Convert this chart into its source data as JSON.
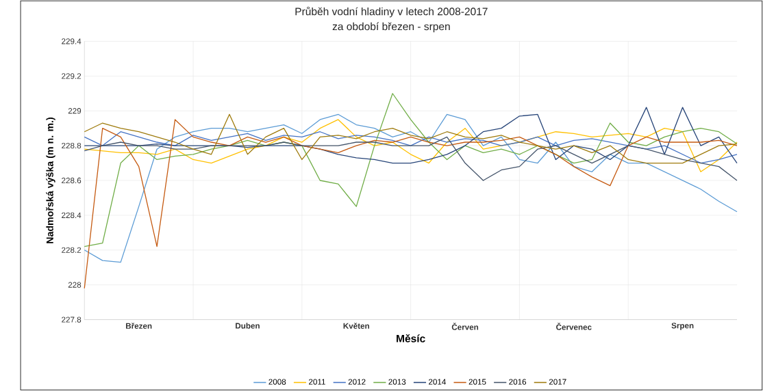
{
  "chart_data": {
    "type": "line",
    "title": "Průběh vodní hladiny v letech 2008-2017",
    "subtitle": "za období březen - srpen",
    "xlabel": "Měsíc",
    "ylabel": "Nadmořská výška (m n. m.)",
    "categories": [
      null,
      null,
      null,
      "Březen",
      null,
      null,
      null,
      null,
      null,
      "Duben",
      null,
      null,
      null,
      null,
      null,
      "Květen",
      null,
      null,
      null,
      null,
      null,
      "Červen",
      null,
      null,
      null,
      null,
      null,
      "Červenec",
      null,
      null,
      null,
      null,
      null,
      "Srpen",
      null,
      null,
      null
    ],
    "ylim": [
      227.8,
      229.4
    ],
    "yticks": [
      227.8,
      228,
      228.2,
      228.4,
      228.6,
      228.8,
      229,
      229.2,
      229.4
    ],
    "grid": true,
    "legend": "bottom",
    "marker": "none",
    "line_style": "solid",
    "series": [
      {
        "name": "2008",
        "color": "#5b9bd5",
        "values": [
          228.2,
          228.14,
          228.13,
          228.45,
          228.78,
          228.85,
          228.88,
          228.9,
          228.9,
          228.88,
          228.9,
          228.92,
          228.87,
          228.95,
          228.98,
          228.92,
          228.9,
          228.85,
          228.88,
          228.82,
          228.98,
          228.95,
          228.8,
          228.85,
          228.72,
          228.7,
          228.82,
          228.68,
          228.65,
          228.75,
          228.7,
          228.7,
          228.65,
          228.6,
          228.55,
          228.48,
          228.42
        ]
      },
      {
        "name": "2011",
        "color": "#ffc000",
        "values": [
          228.78,
          228.77,
          228.76,
          228.76,
          228.75,
          228.78,
          228.72,
          228.7,
          228.74,
          228.78,
          228.8,
          228.85,
          228.82,
          228.9,
          228.95,
          228.85,
          228.8,
          228.82,
          228.75,
          228.7,
          228.82,
          228.9,
          228.78,
          228.8,
          228.82,
          228.85,
          228.88,
          228.87,
          228.85,
          228.86,
          228.87,
          228.85,
          228.9,
          228.88,
          228.65,
          228.72,
          228.82
        ]
      },
      {
        "name": "2012",
        "color": "#4472c4",
        "values": [
          228.85,
          228.8,
          228.88,
          228.85,
          228.82,
          228.8,
          228.86,
          228.83,
          228.85,
          228.87,
          228.83,
          228.86,
          228.85,
          228.88,
          228.84,
          228.86,
          228.85,
          228.83,
          228.8,
          228.85,
          228.82,
          228.84,
          228.83,
          228.8,
          228.82,
          228.85,
          228.8,
          228.83,
          228.84,
          228.82,
          228.8,
          228.78,
          228.8,
          228.75,
          228.7,
          228.72,
          228.75
        ]
      },
      {
        "name": "2013",
        "color": "#70ad47",
        "values": [
          228.22,
          228.24,
          228.7,
          228.8,
          228.72,
          228.74,
          228.75,
          228.78,
          228.8,
          228.83,
          228.8,
          228.82,
          228.8,
          228.6,
          228.58,
          228.45,
          228.8,
          229.1,
          228.95,
          228.82,
          228.72,
          228.8,
          228.76,
          228.78,
          228.75,
          228.8,
          228.75,
          228.7,
          228.72,
          228.93,
          228.82,
          228.8,
          228.85,
          228.88,
          228.9,
          228.88,
          228.81
        ]
      },
      {
        "name": "2014",
        "color": "#264478",
        "values": [
          228.8,
          228.8,
          228.8,
          228.8,
          228.81,
          228.8,
          228.8,
          228.8,
          228.8,
          228.79,
          228.8,
          228.8,
          228.8,
          228.78,
          228.75,
          228.73,
          228.72,
          228.7,
          228.7,
          228.72,
          228.75,
          228.8,
          228.88,
          228.9,
          228.97,
          228.98,
          228.72,
          228.8,
          228.78,
          228.72,
          228.8,
          229.02,
          228.75,
          229.02,
          228.8,
          228.85,
          228.7
        ]
      },
      {
        "name": "2015",
        "color": "#c55a11",
        "values": [
          227.98,
          228.9,
          228.85,
          228.68,
          228.22,
          228.95,
          228.85,
          228.82,
          228.8,
          228.85,
          228.82,
          228.85,
          228.8,
          228.78,
          228.76,
          228.8,
          228.83,
          228.82,
          228.85,
          228.82,
          228.8,
          228.82,
          228.82,
          228.83,
          228.85,
          228.8,
          228.75,
          228.68,
          228.62,
          228.57,
          228.8,
          228.85,
          228.82,
          228.82,
          228.82,
          228.83,
          228.8
        ]
      },
      {
        "name": "2016",
        "color": "#44546a",
        "values": [
          228.77,
          228.8,
          228.82,
          228.8,
          228.8,
          228.78,
          228.78,
          228.8,
          228.8,
          228.8,
          228.8,
          228.82,
          228.8,
          228.8,
          228.8,
          228.82,
          228.82,
          228.8,
          228.8,
          228.8,
          228.85,
          228.7,
          228.6,
          228.66,
          228.68,
          228.78,
          228.8,
          228.75,
          228.7,
          228.75,
          228.8,
          228.78,
          228.75,
          228.72,
          228.7,
          228.68,
          228.6
        ]
      },
      {
        "name": "2017",
        "color": "#9e7a0b",
        "values": [
          228.88,
          228.93,
          228.9,
          228.88,
          228.85,
          228.82,
          228.78,
          228.75,
          228.98,
          228.75,
          228.85,
          228.9,
          228.72,
          228.85,
          228.86,
          228.84,
          228.88,
          228.9,
          228.86,
          228.84,
          228.88,
          228.85,
          228.84,
          228.86,
          228.82,
          228.8,
          228.78,
          228.8,
          228.76,
          228.8,
          228.72,
          228.7,
          228.7,
          228.7,
          228.75,
          228.8,
          228.81
        ]
      }
    ]
  }
}
